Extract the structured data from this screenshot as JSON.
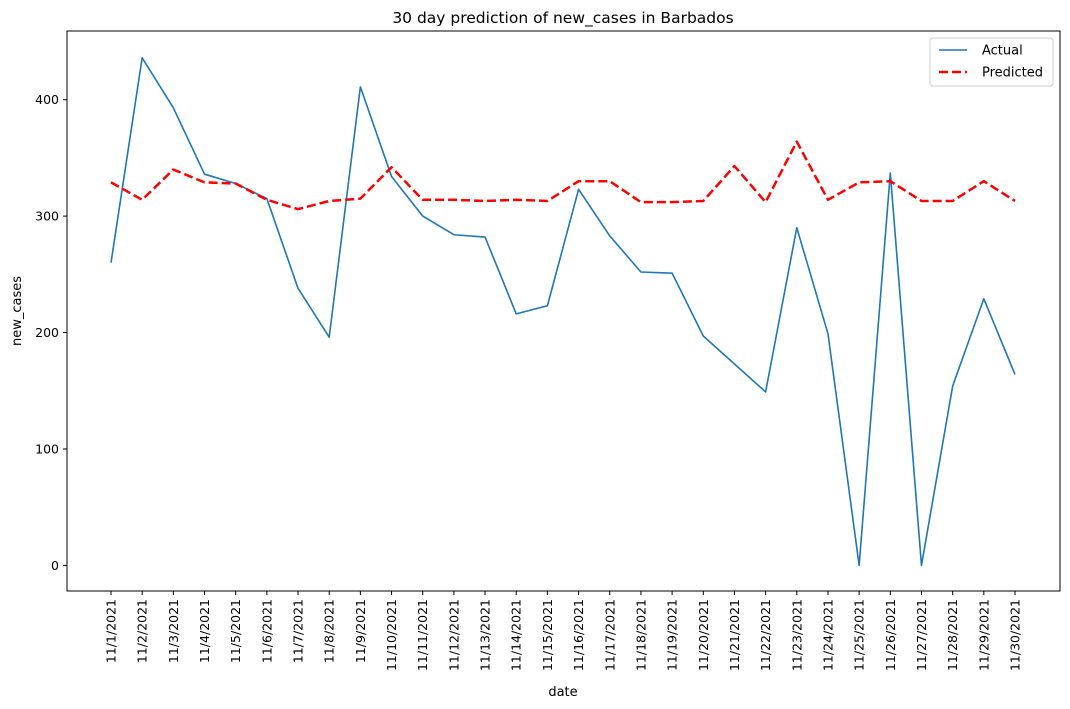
{
  "chart_data": {
    "type": "line",
    "title": "30 day prediction of new_cases in Barbados",
    "xlabel": "date",
    "ylabel": "new_cases",
    "ylim": [
      -22,
      459
    ],
    "yticks": [
      0,
      100,
      200,
      300,
      400
    ],
    "grid": false,
    "legend_position": "top-right",
    "categories": [
      "11/1/2021",
      "11/2/2021",
      "11/3/2021",
      "11/4/2021",
      "11/5/2021",
      "11/6/2021",
      "11/7/2021",
      "11/8/2021",
      "11/9/2021",
      "11/10/2021",
      "11/11/2021",
      "11/12/2021",
      "11/13/2021",
      "11/14/2021",
      "11/15/2021",
      "11/16/2021",
      "11/17/2021",
      "11/18/2021",
      "11/19/2021",
      "11/20/2021",
      "11/21/2021",
      "11/22/2021",
      "11/23/2021",
      "11/24/2021",
      "11/25/2021",
      "11/26/2021",
      "11/27/2021",
      "11/28/2021",
      "11/29/2021",
      "11/30/2021"
    ],
    "series": [
      {
        "name": "Actual",
        "color": "#1f77b4",
        "style": "solid",
        "values": [
          260,
          436,
          393,
          336,
          328,
          315,
          238,
          196,
          411,
          334,
          300,
          284,
          282,
          216,
          223,
          323,
          283,
          252,
          251,
          197,
          173,
          149,
          290,
          199,
          0,
          337,
          0,
          154,
          229,
          164
        ]
      },
      {
        "name": "Predicted",
        "color": "#ff0000",
        "style": "dashed",
        "values": [
          329,
          314,
          340,
          329,
          328,
          314,
          306,
          313,
          315,
          342,
          314,
          314,
          313,
          314,
          313,
          330,
          330,
          312,
          312,
          313,
          343,
          312,
          364,
          314,
          329,
          330,
          313,
          313,
          330,
          313
        ]
      }
    ]
  }
}
